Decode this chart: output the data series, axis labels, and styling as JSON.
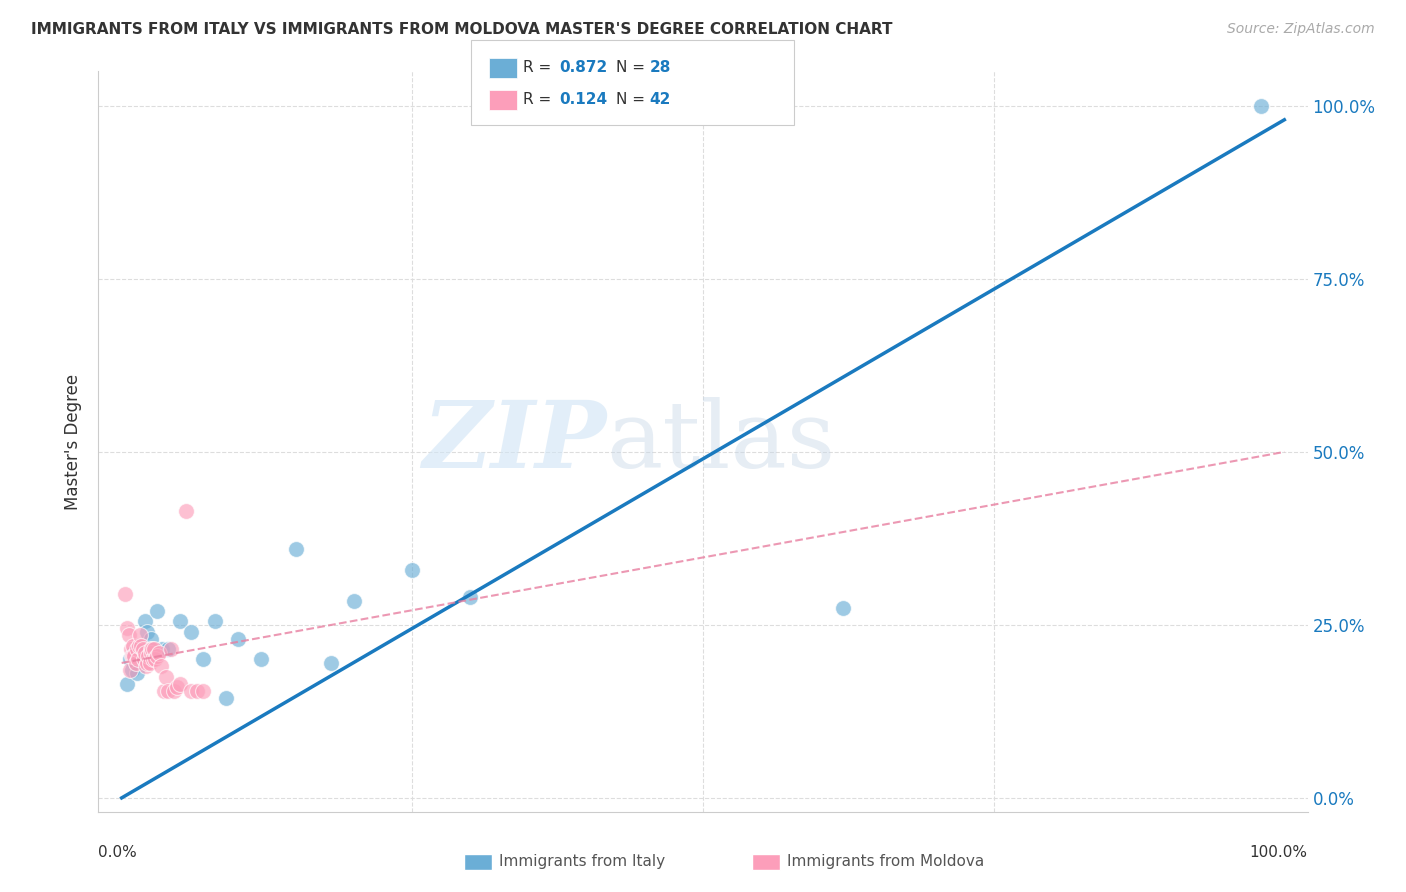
{
  "title": "IMMIGRANTS FROM ITALY VS IMMIGRANTS FROM MOLDOVA MASTER'S DEGREE CORRELATION CHART",
  "source": "Source: ZipAtlas.com",
  "ylabel": "Master's Degree",
  "legend_italy": "Immigrants from Italy",
  "legend_moldova": "Immigrants from Moldova",
  "italy_R": "0.872",
  "italy_N": "28",
  "moldova_R": "0.124",
  "moldova_N": "42",
  "italy_color": "#6baed6",
  "moldova_color": "#fc9eba",
  "italy_line_color": "#1a7abf",
  "moldova_line_color": "#e87fa0",
  "watermark_zip": "ZIP",
  "watermark_atlas": "atlas",
  "ytick_labels": [
    "0.0%",
    "25.0%",
    "50.0%",
    "75.0%",
    "100.0%"
  ],
  "ytick_values": [
    0.0,
    0.25,
    0.5,
    0.75,
    1.0
  ],
  "xlim": [
    -0.02,
    1.02
  ],
  "ylim": [
    -0.02,
    1.05
  ],
  "italy_line_x0": 0.0,
  "italy_line_y0": 0.0,
  "italy_line_x1": 1.0,
  "italy_line_y1": 0.98,
  "moldova_line_x0": 0.0,
  "moldova_line_y0": 0.195,
  "moldova_line_x1": 1.0,
  "moldova_line_y1": 0.5,
  "italy_x": [
    0.005,
    0.007,
    0.009,
    0.01,
    0.012,
    0.013,
    0.015,
    0.017,
    0.02,
    0.022,
    0.025,
    0.03,
    0.035,
    0.04,
    0.05,
    0.06,
    0.07,
    0.08,
    0.09,
    0.1,
    0.12,
    0.15,
    0.18,
    0.2,
    0.25,
    0.3,
    0.62,
    0.98
  ],
  "italy_y": [
    0.165,
    0.2,
    0.185,
    0.21,
    0.195,
    0.18,
    0.22,
    0.215,
    0.255,
    0.24,
    0.23,
    0.27,
    0.215,
    0.215,
    0.255,
    0.24,
    0.2,
    0.255,
    0.145,
    0.23,
    0.2,
    0.36,
    0.195,
    0.285,
    0.33,
    0.29,
    0.275,
    1.0
  ],
  "moldova_x": [
    0.003,
    0.005,
    0.006,
    0.007,
    0.008,
    0.009,
    0.01,
    0.01,
    0.011,
    0.012,
    0.013,
    0.014,
    0.015,
    0.016,
    0.017,
    0.018,
    0.019,
    0.02,
    0.021,
    0.022,
    0.023,
    0.024,
    0.025,
    0.025,
    0.026,
    0.027,
    0.028,
    0.029,
    0.03,
    0.032,
    0.034,
    0.036,
    0.038,
    0.04,
    0.042,
    0.045,
    0.048,
    0.05,
    0.055,
    0.06,
    0.065,
    0.07
  ],
  "moldova_y": [
    0.295,
    0.245,
    0.235,
    0.185,
    0.215,
    0.205,
    0.22,
    0.205,
    0.205,
    0.195,
    0.215,
    0.2,
    0.22,
    0.235,
    0.22,
    0.215,
    0.2,
    0.21,
    0.19,
    0.195,
    0.205,
    0.195,
    0.215,
    0.21,
    0.215,
    0.2,
    0.215,
    0.2,
    0.205,
    0.21,
    0.19,
    0.155,
    0.175,
    0.155,
    0.215,
    0.155,
    0.16,
    0.165,
    0.415,
    0.155,
    0.155,
    0.155
  ],
  "background_color": "#ffffff",
  "grid_color": "#dddddd"
}
